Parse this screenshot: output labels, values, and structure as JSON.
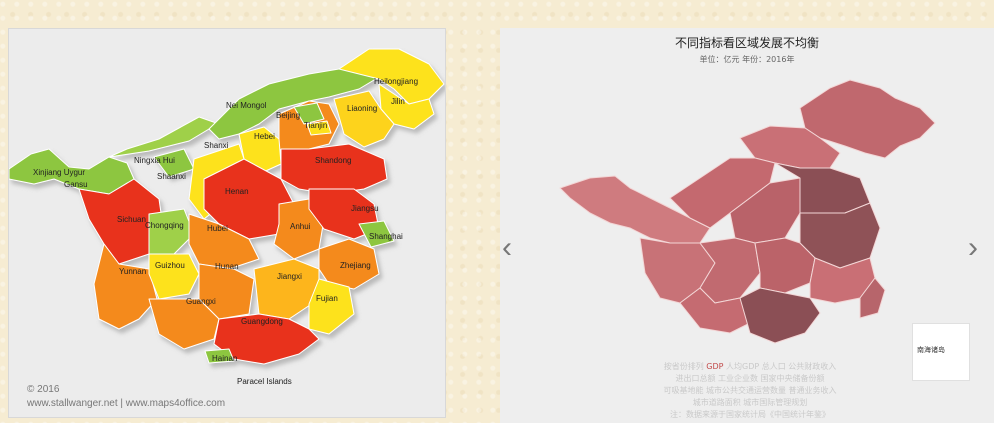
{
  "left_map": {
    "provinces": [
      "Heilongjiang",
      "Jilin",
      "Liaoning",
      "Nei Mongol",
      "Beijing",
      "Tianjin",
      "Hebei",
      "Shanxi",
      "Ningxia Hui",
      "Shaanxi",
      "Shandong",
      "Henan",
      "Xinjiang Uygur",
      "Gansu",
      "Sichuan",
      "Chongqing",
      "Hubei",
      "Anhui",
      "Jiangsu",
      "Shanghai",
      "Yunnan",
      "Guizhou",
      "Hunan",
      "Jiangxi",
      "Zhejiang",
      "Guangxi",
      "Fujian",
      "Guangdong",
      "Hainan",
      "Paracel Islands"
    ],
    "copyright": "© 2016",
    "credit": "www.stallwanger.net | www.maps4office.com"
  },
  "right_map": {
    "title": "不同指标看区域发展不均衡",
    "subtitle": "单位：亿元    年份：2016年",
    "legend_lines": [
      {
        "before": "按省份排列 ",
        "highlight": "GDP",
        "after": " 人均GDP 总人口 公共财政收入"
      },
      {
        "before": "进出口总额 工业企业数 国家中央储备份额",
        "highlight": "",
        "after": ""
      },
      {
        "before": "可吸基地能 城市公共交通运营数量 普通业务收入",
        "highlight": "",
        "after": ""
      },
      {
        "before": "城市道路面积 城市国际管理规划",
        "highlight": "",
        "after": ""
      },
      {
        "before": "注：数据来源于国家统计局《中国统计年鉴》",
        "highlight": "",
        "after": ""
      }
    ],
    "inset_label": "南海诸岛",
    "prev_arrow": "‹",
    "next_arrow": "›"
  },
  "colors": {
    "left_red": "#e8321b",
    "left_orange": "#f48a1f",
    "left_yellow": "#fde21f",
    "left_green": "#8dc63f",
    "right_dark": "#8b4f55",
    "right_mid": "#b7656b",
    "right_light": "#cf7b7f"
  }
}
